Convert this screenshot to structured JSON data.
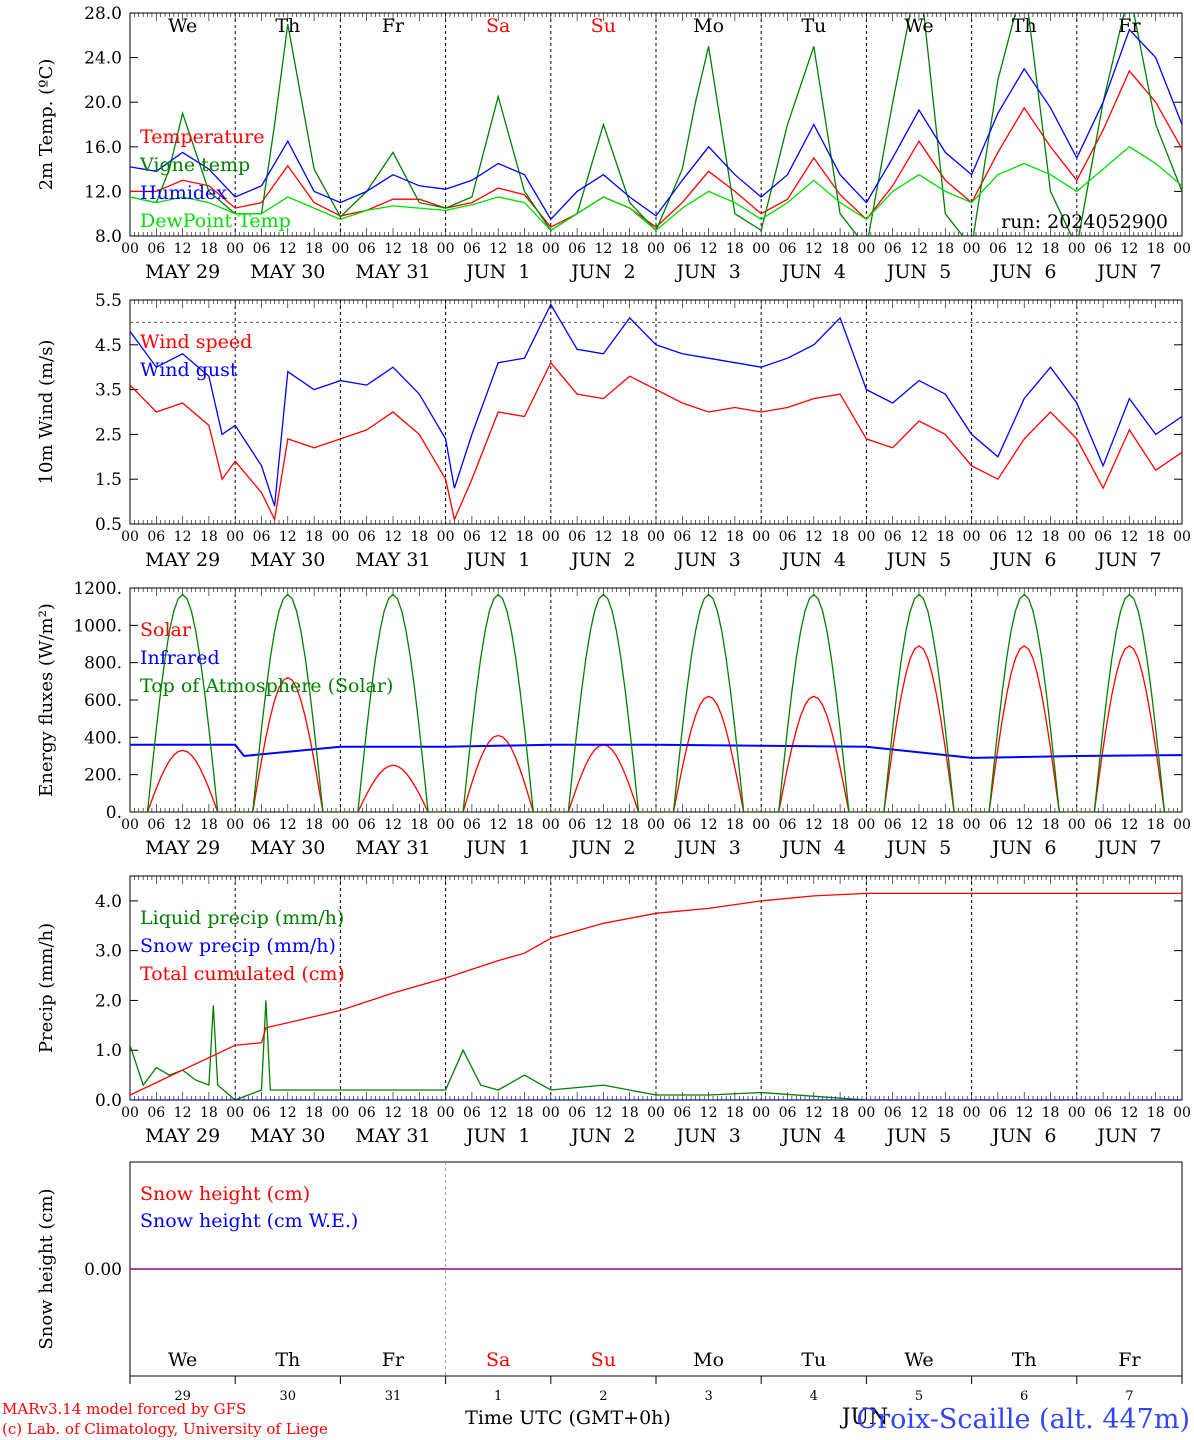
{
  "run_label": "run: 2024052900",
  "footer": {
    "model": "MARv3.14 model forced by GFS",
    "copyright": "(c) Lab. of Climatology, University of Liege",
    "xlabel": "Time UTC (GMT+0h)",
    "station": "Croix-Scaille (alt. 447m)",
    "month_mark": "JUN"
  },
  "days": {
    "weekdays": [
      "We",
      "Th",
      "Fr",
      "Sa",
      "Su",
      "Mo",
      "Tu",
      "We",
      "Th",
      "Fr"
    ],
    "weekday_colors": [
      "#000000",
      "#000000",
      "#000000",
      "#ff0000",
      "#ff0000",
      "#000000",
      "#000000",
      "#000000",
      "#000000",
      "#000000"
    ],
    "dates": [
      "MAY 29",
      "MAY 30",
      "MAY 31",
      "JUN  1",
      "JUN  2",
      "JUN  3",
      "JUN  4",
      "JUN  5",
      "JUN  6",
      "JUN  7"
    ],
    "day_numbers": [
      "29",
      "30",
      "31",
      "1",
      "2",
      "3",
      "4",
      "5",
      "6",
      "7"
    ],
    "hour_ticks": [
      "00",
      "06",
      "12",
      "18"
    ],
    "final_tick": "00"
  },
  "colors": {
    "red": "#ff0000",
    "green": "#008000",
    "blue": "#0000ff",
    "lightgreen": "#00dd00",
    "purple": "#800080"
  },
  "chart_data": [
    {
      "type": "line",
      "ylabel": "2m Temp. (ºC)",
      "ylim": [
        8,
        28
      ],
      "yticks": [
        "8.0",
        "12.0",
        "16.0",
        "20.0",
        "24.0",
        "28.0"
      ],
      "x_unit": "hours since May 29 00 UTC",
      "series": [
        {
          "name": "Temperature",
          "color": "#ff0000",
          "x": [
            0,
            6,
            12,
            18,
            24,
            30,
            36,
            42,
            48,
            54,
            60,
            66,
            72,
            78,
            84,
            90,
            96,
            102,
            108,
            114,
            120,
            126,
            132,
            138,
            144,
            150,
            156,
            162,
            168,
            174,
            180,
            186,
            192,
            198,
            204,
            210,
            216,
            222,
            228,
            234,
            240
          ],
          "values": [
            12.0,
            12.0,
            13.0,
            12.5,
            10.5,
            11.0,
            14.3,
            11.0,
            9.8,
            10.3,
            11.3,
            11.3,
            10.5,
            11.0,
            12.3,
            11.7,
            8.8,
            10.0,
            11.5,
            10.5,
            8.8,
            11.0,
            13.8,
            12.0,
            10.0,
            11.3,
            15.0,
            11.7,
            9.5,
            12.5,
            16.5,
            13.0,
            11.0,
            15.5,
            19.5,
            16.0,
            13.0,
            17.5,
            22.8,
            20.0,
            15.8
          ]
        },
        {
          "name": "Vigne temp",
          "color": "#008000",
          "x": [
            0,
            6,
            9,
            12,
            18,
            24,
            30,
            33,
            36,
            42,
            48,
            54,
            60,
            66,
            72,
            78,
            84,
            90,
            96,
            102,
            108,
            114,
            120,
            126,
            129,
            132,
            138,
            144,
            150,
            156,
            162,
            168,
            174,
            177,
            180,
            186,
            192,
            198,
            204,
            210,
            216,
            222,
            228,
            234,
            240
          ],
          "values": [
            11.5,
            11.0,
            14.0,
            19.0,
            12.0,
            10.0,
            10.0,
            18.0,
            27.0,
            14.0,
            9.7,
            12.0,
            15.5,
            11.0,
            10.5,
            11.5,
            20.5,
            12.0,
            8.5,
            10.0,
            18.0,
            11.0,
            8.5,
            14.0,
            20.0,
            25.0,
            10.0,
            8.5,
            18.0,
            25.0,
            10.0,
            7.0,
            20.0,
            26.0,
            32.0,
            10.0,
            7.0,
            22.0,
            31.0,
            12.0,
            7.0,
            20.0,
            30.0,
            18.0,
            12.0
          ]
        },
        {
          "name": "Humidex",
          "color": "#0000ff",
          "x": [
            0,
            6,
            12,
            18,
            24,
            30,
            36,
            42,
            48,
            54,
            60,
            66,
            72,
            78,
            84,
            90,
            96,
            102,
            108,
            114,
            120,
            126,
            132,
            138,
            144,
            150,
            156,
            162,
            168,
            174,
            180,
            186,
            192,
            198,
            204,
            210,
            216,
            222,
            228,
            234,
            240
          ],
          "values": [
            14.2,
            13.8,
            15.5,
            14.0,
            11.5,
            12.5,
            16.5,
            12.0,
            11.0,
            12.0,
            13.5,
            12.5,
            12.2,
            13.0,
            14.5,
            13.5,
            9.5,
            12.0,
            13.5,
            11.5,
            9.8,
            13.0,
            16.0,
            13.5,
            11.5,
            13.5,
            18.0,
            13.5,
            11.0,
            15.0,
            19.3,
            15.5,
            13.5,
            19.0,
            23.0,
            19.5,
            15.0,
            20.0,
            26.5,
            24.0,
            18.0
          ]
        },
        {
          "name": "DewPoint Temp",
          "color": "#00dd00",
          "x": [
            0,
            6,
            12,
            18,
            24,
            30,
            36,
            42,
            48,
            54,
            60,
            66,
            72,
            78,
            84,
            90,
            96,
            102,
            108,
            114,
            120,
            126,
            132,
            138,
            144,
            150,
            156,
            162,
            168,
            174,
            180,
            186,
            192,
            198,
            204,
            210,
            216,
            222,
            228,
            234,
            240
          ],
          "values": [
            11.5,
            11.0,
            11.5,
            11.0,
            10.0,
            10.0,
            11.5,
            10.5,
            9.5,
            10.3,
            10.7,
            10.5,
            10.3,
            10.8,
            11.5,
            11.0,
            8.5,
            10.0,
            11.5,
            10.5,
            8.5,
            10.5,
            12.0,
            11.0,
            9.5,
            11.0,
            13.0,
            11.0,
            9.5,
            12.0,
            13.5,
            12.0,
            11.0,
            13.5,
            14.5,
            13.5,
            12.0,
            14.0,
            16.0,
            14.5,
            12.5
          ]
        }
      ]
    },
    {
      "type": "line",
      "ylabel": "10m Wind (m/s)",
      "ylim": [
        0.5,
        5.5
      ],
      "yticks": [
        "0.5",
        "1.5",
        "2.5",
        "3.5",
        "4.5",
        "5.5"
      ],
      "reference_line": 5.0,
      "x_unit": "hours since May 29 00 UTC",
      "series": [
        {
          "name": "Wind speed",
          "color": "#ff0000",
          "x": [
            0,
            6,
            12,
            18,
            21,
            24,
            30,
            33,
            36,
            42,
            48,
            54,
            60,
            66,
            72,
            74,
            78,
            84,
            90,
            96,
            102,
            108,
            114,
            120,
            126,
            132,
            138,
            144,
            150,
            156,
            162,
            168,
            174,
            180,
            186,
            192,
            198,
            204,
            210,
            216,
            222,
            228,
            234,
            240
          ],
          "values": [
            3.6,
            3.0,
            3.2,
            2.7,
            1.5,
            1.9,
            1.2,
            0.6,
            2.4,
            2.2,
            2.4,
            2.6,
            3.0,
            2.5,
            1.5,
            0.6,
            1.5,
            3.0,
            2.9,
            4.1,
            3.4,
            3.3,
            3.8,
            3.5,
            3.2,
            3.0,
            3.1,
            3.0,
            3.1,
            3.3,
            3.4,
            2.4,
            2.2,
            2.8,
            2.5,
            1.8,
            1.5,
            2.4,
            3.0,
            2.4,
            1.3,
            2.6,
            1.7,
            2.1
          ]
        },
        {
          "name": "Wind gust",
          "color": "#0000ff",
          "x": [
            0,
            6,
            12,
            18,
            21,
            24,
            30,
            33,
            36,
            42,
            48,
            54,
            60,
            66,
            72,
            74,
            78,
            84,
            90,
            96,
            102,
            108,
            114,
            120,
            126,
            132,
            138,
            144,
            150,
            156,
            162,
            168,
            174,
            180,
            186,
            192,
            198,
            204,
            210,
            216,
            222,
            228,
            234,
            240
          ],
          "values": [
            4.8,
            4.0,
            4.3,
            3.8,
            2.5,
            2.7,
            1.8,
            0.9,
            3.9,
            3.5,
            3.7,
            3.6,
            4.0,
            3.4,
            2.4,
            1.3,
            2.5,
            4.1,
            4.2,
            5.4,
            4.4,
            4.3,
            5.1,
            4.5,
            4.3,
            4.2,
            4.1,
            4.0,
            4.2,
            4.5,
            5.1,
            3.5,
            3.2,
            3.7,
            3.4,
            2.5,
            2.0,
            3.3,
            4.0,
            3.2,
            1.8,
            3.3,
            2.5,
            2.9
          ]
        }
      ]
    },
    {
      "type": "line",
      "ylabel": "Energy fluxes (W/m²)",
      "ylim": [
        0,
        1200
      ],
      "yticks": [
        "0.",
        "200.",
        "400.",
        "600.",
        "800.",
        "1000.",
        "1200."
      ],
      "x_unit": "hours since May 29 00 UTC",
      "series": [
        {
          "name": "Solar",
          "color": "#ff0000",
          "daily_peaks": [
            330,
            720,
            250,
            410,
            360,
            620,
            620,
            890,
            890,
            890
          ]
        },
        {
          "name": "Infrared",
          "color": "#0000ff",
          "x": [
            0,
            24,
            26,
            48,
            72,
            96,
            120,
            144,
            168,
            192,
            216,
            240
          ],
          "values": [
            360,
            360,
            300,
            350,
            350,
            360,
            360,
            355,
            350,
            290,
            300,
            305
          ]
        },
        {
          "name": "Top of Atmosphere (Solar)",
          "color": "#008000",
          "daily_peaks": [
            1165,
            1165,
            1165,
            1165,
            1165,
            1165,
            1165,
            1165,
            1165,
            1165
          ]
        }
      ]
    },
    {
      "type": "line",
      "ylabel": "Precip (mm/h)",
      "ylim": [
        0,
        4.5
      ],
      "yticks": [
        "0.0",
        "1.0",
        "2.0",
        "3.0",
        "4.0"
      ],
      "x_unit": "hours since May 29 00 UTC",
      "series": [
        {
          "name": "Liquid precip (mm/h)",
          "color": "#008000",
          "x": [
            0,
            3,
            6,
            9,
            12,
            15,
            18,
            19,
            20,
            24,
            30,
            31,
            32,
            36,
            48,
            60,
            72,
            76,
            80,
            84,
            90,
            96,
            108,
            120,
            132,
            144,
            168,
            240
          ],
          "values": [
            1.1,
            0.3,
            0.65,
            0.5,
            0.6,
            0.4,
            0.3,
            1.9,
            0.3,
            0.0,
            0.2,
            2.0,
            0.2,
            0.2,
            0.2,
            0.2,
            0.2,
            1.0,
            0.3,
            0.2,
            0.5,
            0.2,
            0.3,
            0.1,
            0.1,
            0.15,
            0.0,
            0.0
          ]
        },
        {
          "name": "Snow precip (mm/h)",
          "color": "#0000ff",
          "x": [
            0,
            240
          ],
          "values": [
            0,
            0
          ]
        },
        {
          "name": "Total cumulated (cm)",
          "color": "#ff0000",
          "x": [
            0,
            6,
            12,
            18,
            24,
            30,
            31,
            36,
            48,
            60,
            72,
            84,
            90,
            96,
            108,
            120,
            132,
            144,
            156,
            168,
            240
          ],
          "values": [
            0.1,
            0.35,
            0.6,
            0.85,
            1.1,
            1.15,
            1.45,
            1.55,
            1.8,
            2.15,
            2.45,
            2.8,
            2.95,
            3.25,
            3.55,
            3.75,
            3.85,
            4.0,
            4.1,
            4.15,
            4.15
          ]
        }
      ]
    },
    {
      "type": "line",
      "ylabel": "Snow height (cm)",
      "ylim": [
        -1,
        1
      ],
      "yticks": [
        "0.00"
      ],
      "x_unit": "hours since May 29 00 UTC",
      "series": [
        {
          "name": "Snow height (cm)",
          "color": "#ff0000",
          "x": [
            0,
            240
          ],
          "values": [
            0,
            0
          ]
        },
        {
          "name": "Snow height (cm W.E.)",
          "color": "#0000ff",
          "x": [
            0,
            240
          ],
          "values": [
            0,
            0
          ]
        }
      ]
    }
  ]
}
